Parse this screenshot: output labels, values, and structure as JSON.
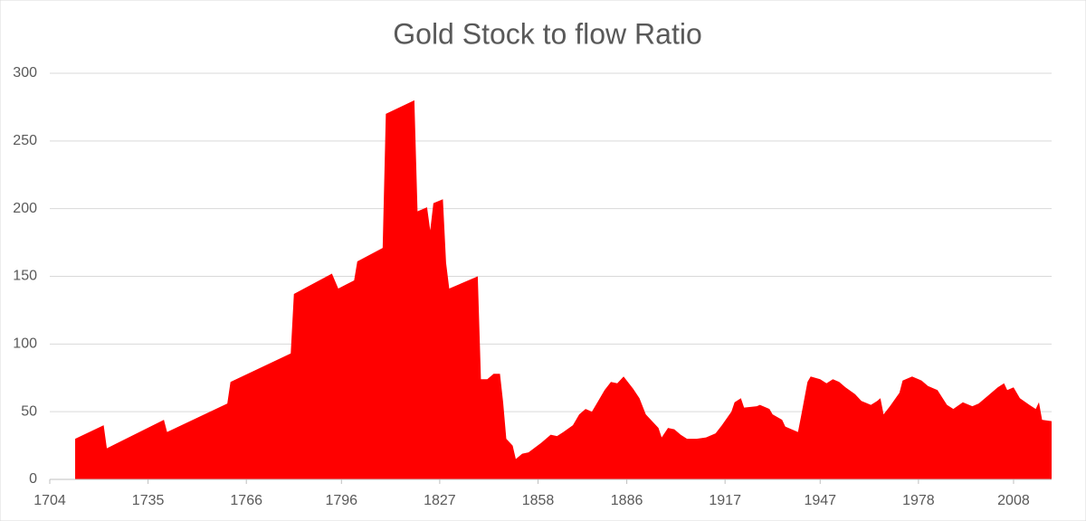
{
  "chart_data": {
    "type": "area",
    "title": "Gold Stock to flow Ratio",
    "x": [
      1712,
      1721,
      1722,
      1740,
      1741,
      1760,
      1761,
      1780,
      1781,
      1793,
      1795,
      1800,
      1801,
      1809,
      1810,
      1819,
      1820,
      1823,
      1824,
      1825,
      1828,
      1829,
      1830,
      1839,
      1840,
      1842,
      1844,
      1846,
      1847,
      1848,
      1850,
      1851,
      1853,
      1855,
      1859,
      1862,
      1864,
      1866,
      1869,
      1871,
      1873,
      1875,
      1877,
      1879,
      1881,
      1883,
      1885,
      1888,
      1890,
      1892,
      1894,
      1896,
      1897,
      1899,
      1901,
      1903,
      1905,
      1908,
      1911,
      1914,
      1916,
      1919,
      1920,
      1922,
      1923,
      1927,
      1928,
      1931,
      1932,
      1935,
      1936,
      1938,
      1940,
      1941,
      1943,
      1944,
      1947,
      1949,
      1951,
      1953,
      1955,
      1958,
      1960,
      1963,
      1965,
      1966,
      1967,
      1969,
      1972,
      1973,
      1976,
      1979,
      1981,
      1984,
      1987,
      1989,
      1992,
      1995,
      1997,
      2000,
      2003,
      2005,
      2006,
      2008,
      2010,
      2013,
      2015,
      2016,
      2017,
      2020
    ],
    "values": [
      30,
      40,
      23,
      44,
      35,
      56,
      72,
      93,
      137,
      152,
      141,
      147,
      161,
      171,
      270,
      280,
      198,
      201,
      184,
      204,
      207,
      160,
      141,
      150,
      74,
      74,
      78,
      78,
      57,
      30,
      25,
      15,
      19,
      20,
      27,
      33,
      32,
      35,
      40,
      48,
      52,
      50,
      58,
      66,
      72,
      71,
      76,
      67,
      60,
      48,
      43,
      38,
      31,
      38,
      37,
      33,
      30,
      30,
      31,
      34,
      40,
      50,
      57,
      60,
      53,
      54,
      55,
      52,
      48,
      44,
      39,
      37,
      35,
      47,
      72,
      76,
      74,
      71,
      74,
      72,
      68,
      63,
      58,
      55,
      58,
      60,
      48,
      54,
      64,
      73,
      76,
      73,
      69,
      66,
      55,
      52,
      57,
      54,
      56,
      62,
      68,
      71,
      66,
      68,
      60,
      55,
      52,
      57,
      44,
      43
    ],
    "color": "#ff0000",
    "xlim": [
      1704,
      2020
    ],
    "xticks": [
      1704,
      1735,
      1766,
      1796,
      1827,
      1858,
      1886,
      1917,
      1947,
      1978,
      2008
    ],
    "ylim": [
      0,
      300
    ],
    "yticks": [
      0,
      50,
      100,
      150,
      200,
      250,
      300
    ],
    "grid": true
  }
}
